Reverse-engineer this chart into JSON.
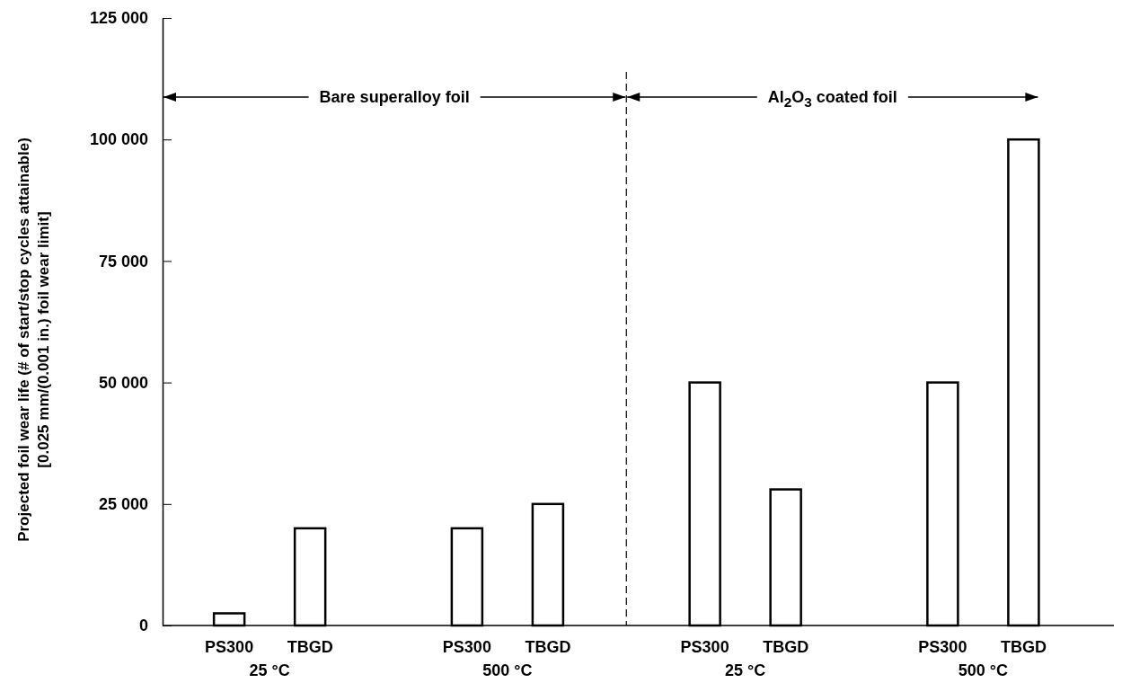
{
  "chart_data": {
    "type": "bar",
    "ylabel": "Projected foil wear life (# of start/stop cycles attainable)\n[0.025 mm/(0.001 in.) foil wear limit]",
    "categories": [
      "PS300",
      "TBGD",
      "PS300",
      "TBGD",
      "PS300",
      "TBGD",
      "PS300",
      "TBGD"
    ],
    "values": [
      2500,
      20000,
      20000,
      25000,
      50000,
      28000,
      50000,
      100000
    ],
    "color": "#ffffff",
    "ylim": [
      0,
      125000
    ],
    "yticks": [
      0,
      {
        "value": 25000,
        "label": "25 000"
      },
      {
        "value": 50000,
        "label": "50 000"
      },
      {
        "value": 75000,
        "label": "75 000"
      },
      {
        "value": 100000,
        "label": "100 000"
      },
      {
        "value": 125000,
        "label": "125 000"
      }
    ],
    "annotations": [
      "25 °C",
      "500 °C",
      "25 °C",
      "500 °C",
      "Bare superalloy foil",
      "Al$_{2}$O$_{3}$ coated foil"
    ]
  }
}
